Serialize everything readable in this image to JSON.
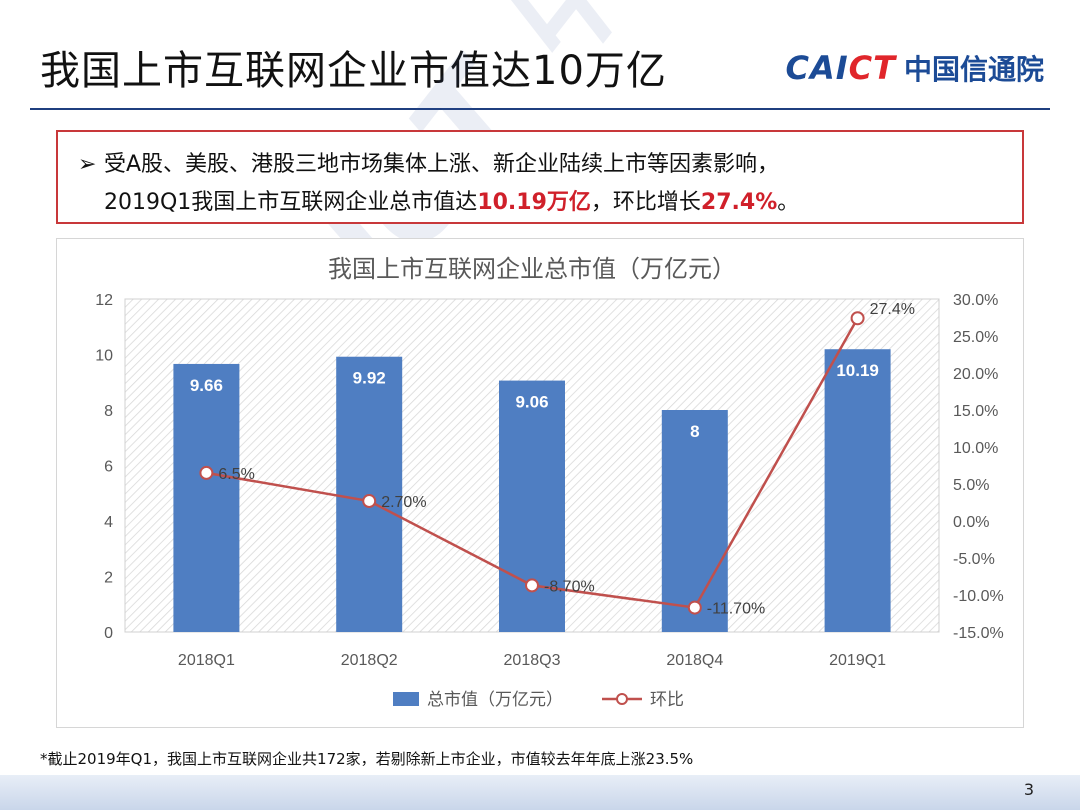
{
  "slide": {
    "title": "我国上市互联网企业市值达10万亿",
    "logo_en_a": "CAI",
    "logo_en_b": "CT",
    "logo_cn": "中国信通院",
    "watermark": "CAICT 中国信通院",
    "page_number": "3",
    "footnote": "*截止2019年Q1，我国上市互联网企业共172家，若剔除新上市企业，市值较去年年底上涨23.5%"
  },
  "callout": {
    "bullet": "➢",
    "line1": "受A股、美股、港股三地市场集体上涨、新企业陆续上市等因素影响，",
    "line2_prefix": "2019Q1我国上市互联网企业总市值达",
    "line2_hl1": "10.19万亿",
    "line2_mid": "，环比增长",
    "line2_hl2": "27.4%",
    "line2_suffix": "。"
  },
  "chart_data": {
    "type": "bar",
    "title": "我国上市互联网企业总市值（万亿元）",
    "categories": [
      "2018Q1",
      "2018Q2",
      "2018Q3",
      "2018Q4",
      "2019Q1"
    ],
    "series": [
      {
        "name": "总市值（万亿元）",
        "type": "bar",
        "axis": "left",
        "color": "#4f7ec2",
        "values": [
          9.66,
          9.92,
          9.06,
          8,
          10.19
        ],
        "labels": [
          "9.66",
          "9.92",
          "9.06",
          "8",
          "10.19"
        ]
      },
      {
        "name": "环比",
        "type": "line",
        "axis": "right",
        "color": "#c0504d",
        "values": [
          6.5,
          2.7,
          -8.7,
          -11.7,
          27.4
        ],
        "labels": [
          "6.5%",
          "2.70%",
          "-8.70%",
          "-11.70%",
          "27.4%"
        ]
      }
    ],
    "y_left": {
      "min": 0,
      "max": 12,
      "ticks": [
        0,
        2,
        4,
        6,
        8,
        10,
        12
      ],
      "tick_labels": [
        "0",
        "2",
        "4",
        "6",
        "8",
        "10",
        "12"
      ]
    },
    "y_right": {
      "min": -15,
      "max": 30,
      "ticks": [
        -15,
        -10,
        -5,
        0,
        5,
        10,
        15,
        20,
        25,
        30
      ],
      "tick_labels": [
        "-15.0%",
        "-10.0%",
        "-5.0%",
        "0.0%",
        "5.0%",
        "10.0%",
        "15.0%",
        "20.0%",
        "25.0%",
        "30.0%"
      ]
    },
    "grid": "hatched plot area",
    "legend": "bottom"
  }
}
